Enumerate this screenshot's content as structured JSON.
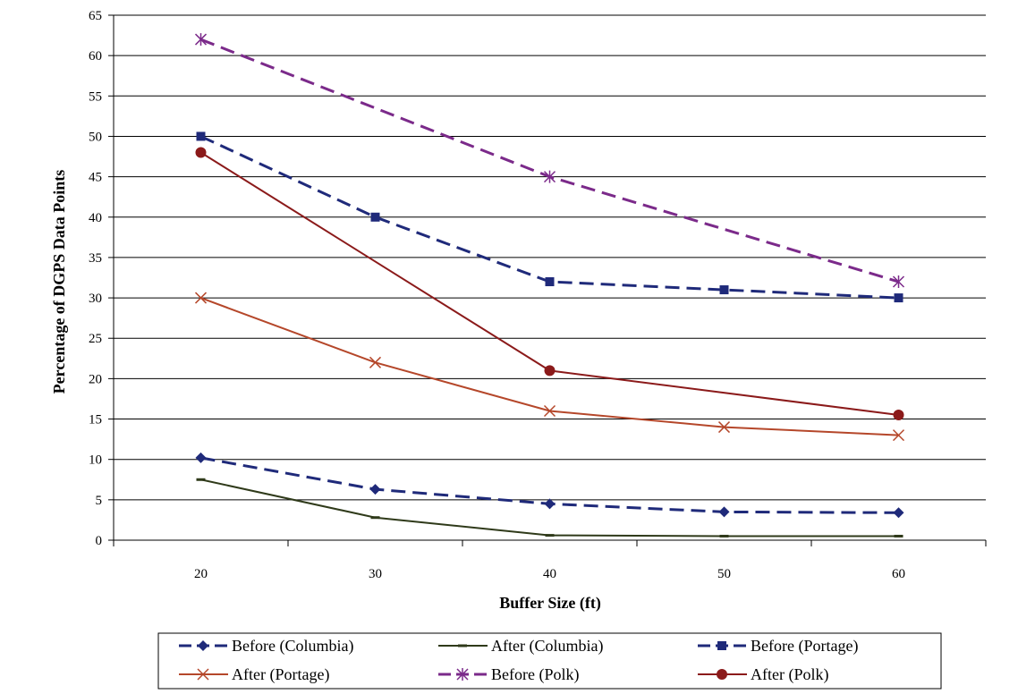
{
  "chart_data": {
    "type": "line",
    "title": "",
    "xlabel": "Buffer Size (ft)",
    "ylabel": "Percentage of DGPS Data Points",
    "x": [
      20,
      30,
      40,
      50,
      60
    ],
    "x_ticks": [
      "20",
      "30",
      "40",
      "50",
      "60"
    ],
    "ylim": [
      0,
      65
    ],
    "y_ticks": [
      "0",
      "5",
      "10",
      "15",
      "20",
      "25",
      "30",
      "35",
      "40",
      "45",
      "50",
      "55",
      "60",
      "65"
    ],
    "grid": "horizontal",
    "legend_position": "bottom",
    "series": [
      {
        "name": "Before (Columbia)",
        "values": [
          10.2,
          6.3,
          4.5,
          3.5,
          3.4
        ],
        "color": "#1f2a7a",
        "dash": "dashed",
        "marker": "diamond"
      },
      {
        "name": "After (Columbia)",
        "values": [
          7.5,
          2.8,
          0.6,
          0.5,
          0.5
        ],
        "color": "#2f3a1a",
        "dash": "solid",
        "marker": "dash"
      },
      {
        "name": "Before (Portage)",
        "values": [
          50,
          40,
          32,
          31,
          30
        ],
        "color": "#1f2a7a",
        "dash": "dashed",
        "marker": "square"
      },
      {
        "name": "After (Portage)",
        "values": [
          30,
          22,
          16,
          14,
          13
        ],
        "color": "#b5472a",
        "dash": "solid",
        "marker": "x"
      },
      {
        "name": "Before (Polk)",
        "values": [
          62,
          null,
          45,
          null,
          32
        ],
        "color": "#7b2a8a",
        "dash": "dashed",
        "marker": "star"
      },
      {
        "name": "After (Polk)",
        "values": [
          48,
          null,
          21,
          null,
          15.5
        ],
        "color": "#8b1a1a",
        "dash": "solid",
        "marker": "circle"
      }
    ]
  }
}
